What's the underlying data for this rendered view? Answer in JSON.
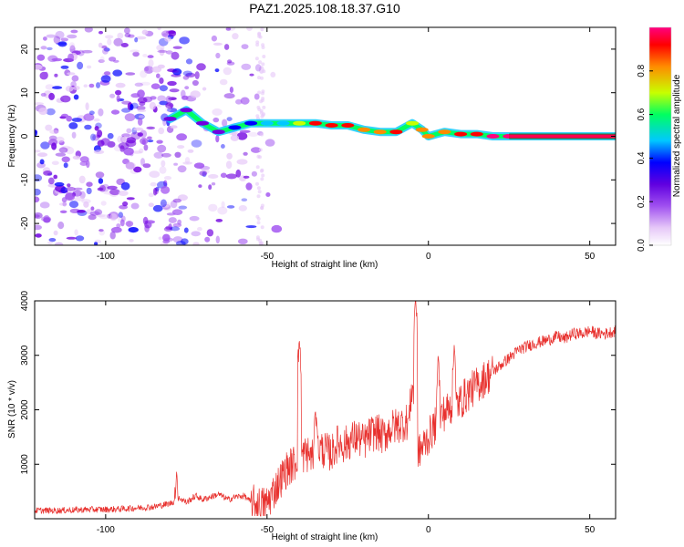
{
  "figure": {
    "title": "PAZ1.2025.108.18.37.G10",
    "spectrogram_xlabel": "Height of straight line (km)",
    "spectrogram_ylabel": "Frequency (Hz)",
    "colorbar_label": "Normalized spectral amplitude",
    "snr_xlabel": "Height of straight line (km)",
    "snr_ylabel": "SNR (10 * v/v)"
  },
  "colors": {
    "snr_line": "#e8312e",
    "colormap": [
      "#ffffff",
      "#e6c8f8",
      "#a050f0",
      "#7000e0",
      "#0000ff",
      "#00c8ff",
      "#00ff60",
      "#c8ff00",
      "#ff8c00",
      "#ff0000",
      "#ff0080"
    ]
  },
  "chart_data": [
    {
      "type": "heatmap",
      "name": "spectrogram",
      "x_unit": "km",
      "y_unit": "Hz",
      "xlim": [
        -122,
        58
      ],
      "ylim": [
        -25,
        25
      ],
      "x_ticks": [
        -100,
        -50,
        0,
        50
      ],
      "y_ticks": [
        20,
        10,
        0,
        -10,
        -20
      ],
      "colorbar": {
        "range": [
          0.0,
          1.0
        ],
        "ticks": [
          0.0,
          0.2,
          0.4,
          0.6,
          0.8
        ]
      },
      "ridge": {
        "points": [
          {
            "x": -80,
            "y": 4,
            "amp": 0.25
          },
          {
            "x": -75,
            "y": 6,
            "amp": 0.28
          },
          {
            "x": -70,
            "y": 3,
            "amp": 0.3
          },
          {
            "x": -65,
            "y": 1,
            "amp": 0.32
          },
          {
            "x": -60,
            "y": 2,
            "amp": 0.35
          },
          {
            "x": -55,
            "y": 3,
            "amp": 0.4
          },
          {
            "x": -50,
            "y": 3,
            "amp": 0.45
          },
          {
            "x": -45,
            "y": 3,
            "amp": 0.5
          },
          {
            "x": -40,
            "y": 3,
            "amp": 0.7
          },
          {
            "x": -35,
            "y": 3,
            "amp": 0.9
          },
          {
            "x": -30,
            "y": 2.5,
            "amp": 0.85
          },
          {
            "x": -25,
            "y": 2.5,
            "amp": 0.9
          },
          {
            "x": -20,
            "y": 1.5,
            "amp": 0.8
          },
          {
            "x": -15,
            "y": 1,
            "amp": 0.75
          },
          {
            "x": -10,
            "y": 1,
            "amp": 0.85
          },
          {
            "x": -5,
            "y": 3,
            "amp": 0.7
          },
          {
            "x": -2,
            "y": 1.5,
            "amp": 0.75
          },
          {
            "x": 0,
            "y": 0,
            "amp": 0.8
          },
          {
            "x": 5,
            "y": 1,
            "amp": 0.8
          },
          {
            "x": 10,
            "y": 0.5,
            "amp": 0.85
          },
          {
            "x": 15,
            "y": 0.5,
            "amp": 0.9
          },
          {
            "x": 20,
            "y": 0,
            "amp": 0.95
          },
          {
            "x": 25,
            "y": 0,
            "amp": 1.0
          },
          {
            "x": 58,
            "y": 0,
            "amp": 1.0
          }
        ]
      }
    },
    {
      "type": "line",
      "name": "snr",
      "x_unit": "km",
      "xlim": [
        -122,
        58
      ],
      "ylim": [
        0,
        4000
      ],
      "x_ticks": [
        -100,
        -50,
        0,
        50
      ],
      "y_ticks": [
        1000,
        2000,
        3000,
        4000
      ],
      "grid": false,
      "series": [
        {
          "x": [
            -122,
            -115,
            -110,
            -105,
            -100,
            -95,
            -90,
            -85,
            -80,
            -77,
            -75,
            -72,
            -70,
            -65,
            -62,
            -60,
            -57,
            -55,
            -52,
            -50,
            -48,
            -46,
            -44,
            -42,
            -40,
            -38,
            -36,
            -34,
            -32,
            -30,
            -28,
            -26,
            -24,
            -22,
            -20,
            -18,
            -16,
            -14,
            -12,
            -10,
            -8,
            -6,
            -5,
            -4,
            -3,
            -2,
            0,
            2,
            4,
            6,
            8,
            10,
            12,
            14,
            16,
            18,
            20,
            22,
            24,
            26,
            28,
            30,
            32,
            35,
            38,
            40,
            42,
            45,
            48,
            50,
            52,
            55,
            58
          ],
          "y": [
            150,
            150,
            160,
            170,
            170,
            180,
            200,
            220,
            280,
            380,
            300,
            420,
            350,
            450,
            350,
            400,
            420,
            300,
            250,
            280,
            500,
            700,
            900,
            1000,
            1100,
            1200,
            1150,
            1300,
            1250,
            1200,
            1400,
            1350,
            1450,
            1500,
            1400,
            1550,
            1600,
            1500,
            1650,
            1700,
            1750,
            1800,
            2500,
            1600,
            1200,
            1300,
            1500,
            1700,
            1900,
            2000,
            2100,
            2150,
            2300,
            2400,
            2500,
            2600,
            2700,
            2800,
            2900,
            3000,
            3100,
            3150,
            3200,
            3250,
            3300,
            3350,
            3300,
            3400,
            3400,
            3450,
            3400,
            3400,
            3450
          ],
          "spikes": [
            {
              "x": -78,
              "y": 900
            },
            {
              "x": -40,
              "y": 3300
            },
            {
              "x": -35,
              "y": 2000
            },
            {
              "x": -4,
              "y": 4100
            },
            {
              "x": 3,
              "y": 3000
            },
            {
              "x": 8,
              "y": 3200
            }
          ]
        }
      ]
    }
  ]
}
